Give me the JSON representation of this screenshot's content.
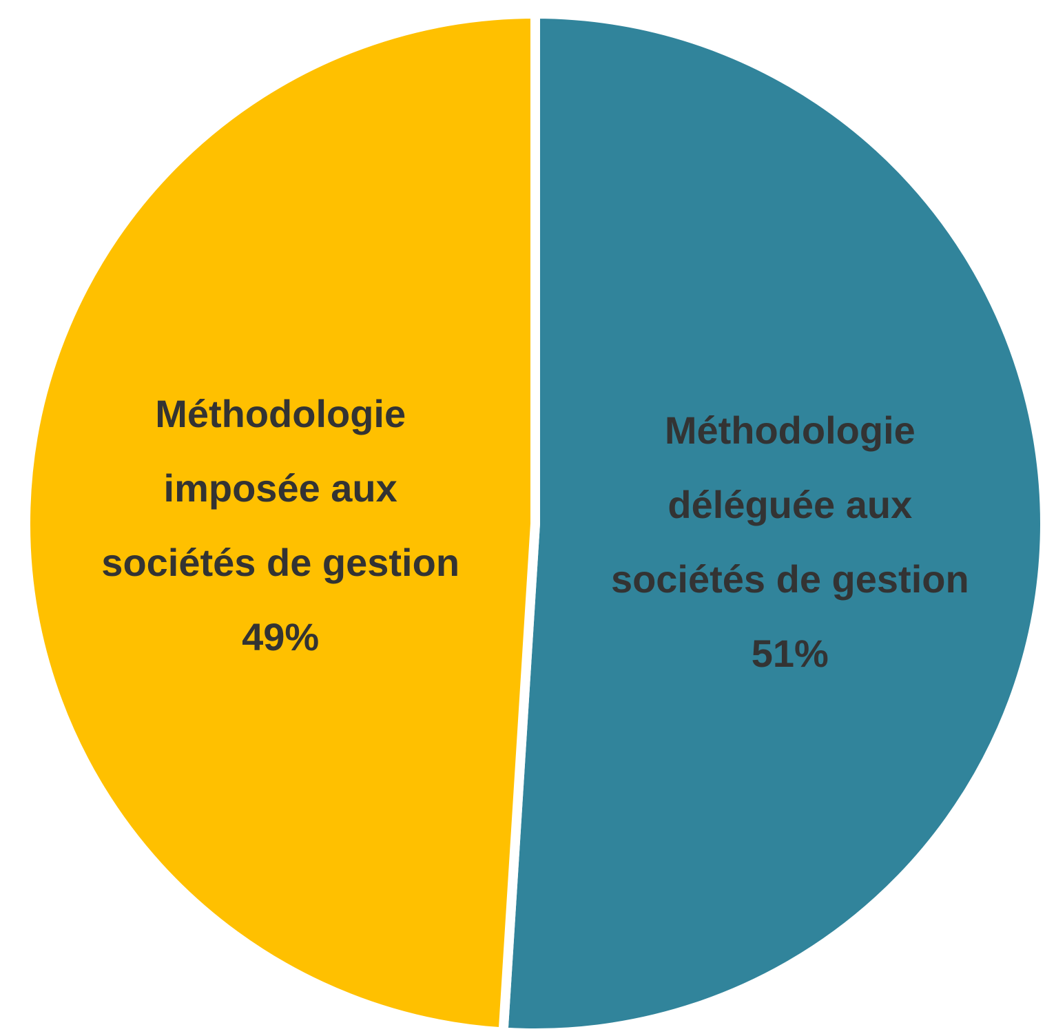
{
  "chart_data": {
    "type": "pie",
    "categories": [
      "Méthodologie déléguée aux sociétés de gestion",
      "Méthodologie imposée aux sociétés de gestion"
    ],
    "values": [
      51,
      49
    ],
    "value_labels": [
      "51%",
      "49%"
    ],
    "colors": [
      "#31849b",
      "#ffc000"
    ]
  }
}
